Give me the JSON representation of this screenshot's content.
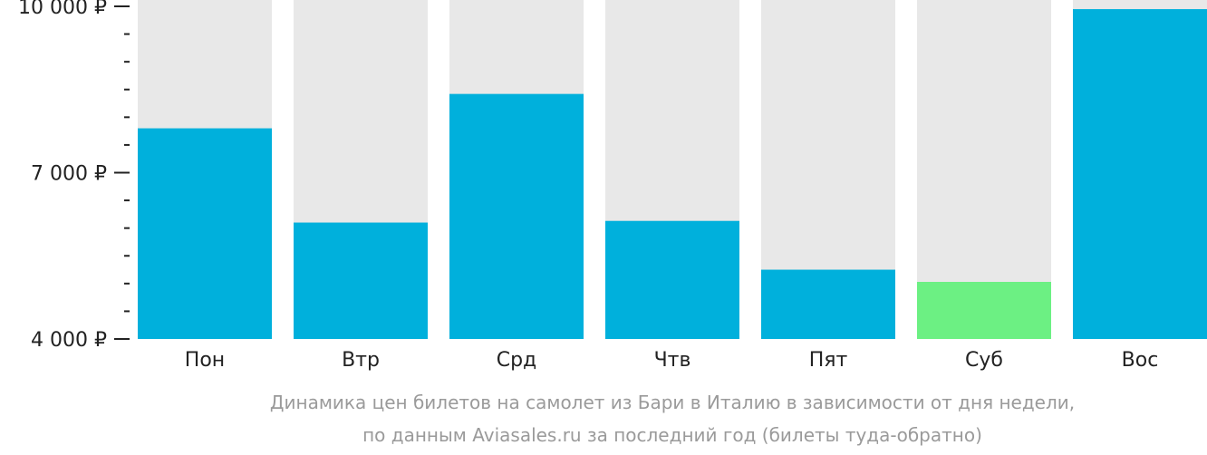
{
  "chart_data": {
    "type": "bar",
    "categories": [
      "Пон",
      "Втр",
      "Срд",
      "Чтв",
      "Пят",
      "Суб",
      "Вос"
    ],
    "values": [
      7800,
      6100,
      8420,
      6130,
      5250,
      5030,
      9950
    ],
    "ylim": [
      4000,
      10000
    ],
    "major_ticks": [
      {
        "value": 10000,
        "label": "10 000 ₽"
      },
      {
        "value": 7000,
        "label": "7 000 ₽"
      },
      {
        "value": 4000,
        "label": "4 000 ₽"
      }
    ],
    "minor_ticks": [
      9500,
      9000,
      8500,
      8000,
      7500,
      6500,
      6000,
      5500,
      5000,
      4500
    ],
    "colors": {
      "bar": "#00b0dc",
      "bar_min": "#6cf083",
      "bar_background": "#e8e8e8"
    },
    "highlight_index": 5,
    "caption": [
      "Динамика цен билетов на самолет из Бари в Италию в зависимости от дня недели,",
      "по данным Aviasales.ru за последний год (билеты туда-обратно)"
    ]
  }
}
